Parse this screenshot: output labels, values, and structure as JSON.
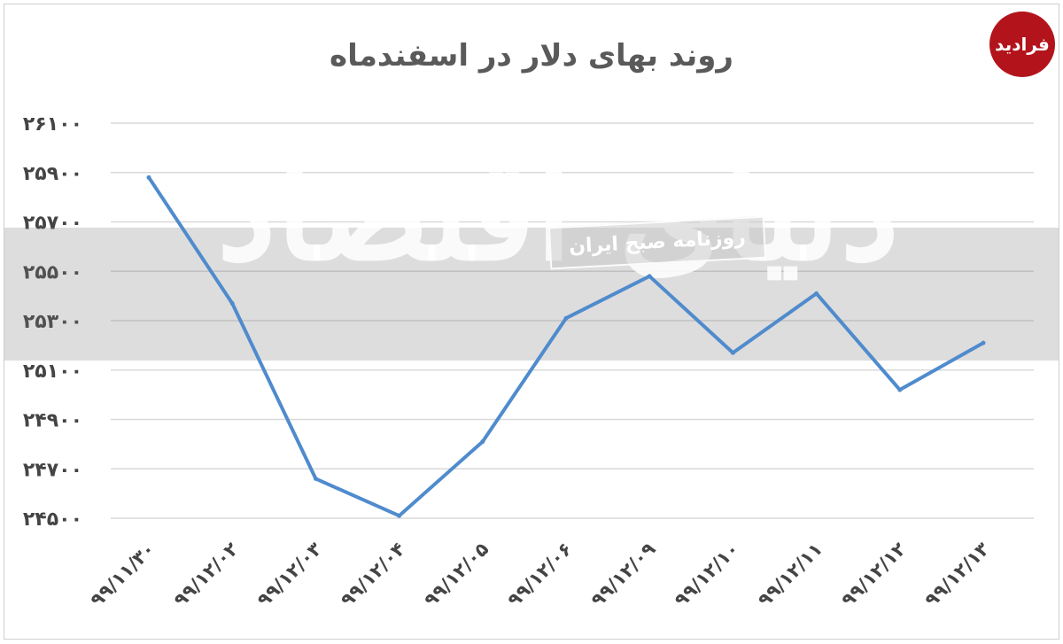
{
  "logo_text": "فرادید",
  "watermark": {
    "main_text": "دنیای اقتصاد",
    "stamp_text": "روزنامه صبح ایران"
  },
  "colors": {
    "line": "#4f8bcd",
    "grid": "#d9d9d9",
    "logo": "#b3141c"
  },
  "chart_data": {
    "type": "line",
    "title": "روند بهای دلار در اسفندماه",
    "xlabel": "",
    "ylabel": "",
    "categories": [
      "۹۹/۱۱/۳۰",
      "۹۹/۱۲/۰۲",
      "۹۹/۱۲/۰۳",
      "۹۹/۱۲/۰۴",
      "۹۹/۱۲/۰۵",
      "۹۹/۱۲/۰۶",
      "۹۹/۱۲/۰۹",
      "۹۹/۱۲/۱۰",
      "۹۹/۱۲/۱۱",
      "۹۹/۱۲/۱۲",
      "۹۹/۱۲/۱۳"
    ],
    "values": [
      25880,
      25370,
      24660,
      24510,
      24810,
      25310,
      25480,
      25170,
      25410,
      25020,
      25210
    ],
    "ylim": [
      24500,
      26100
    ],
    "yticks": [
      24500,
      24700,
      24900,
      25100,
      25300,
      25500,
      25700,
      25900,
      26100
    ],
    "ytick_labels": [
      "۲۴۵۰۰",
      "۲۴۷۰۰",
      "۲۴۹۰۰",
      "۲۵۱۰۰",
      "۲۵۳۰۰",
      "۲۵۵۰۰",
      "۲۵۷۰۰",
      "۲۵۹۰۰",
      "۲۶۱۰۰"
    ],
    "grid": true,
    "legend": "none"
  }
}
